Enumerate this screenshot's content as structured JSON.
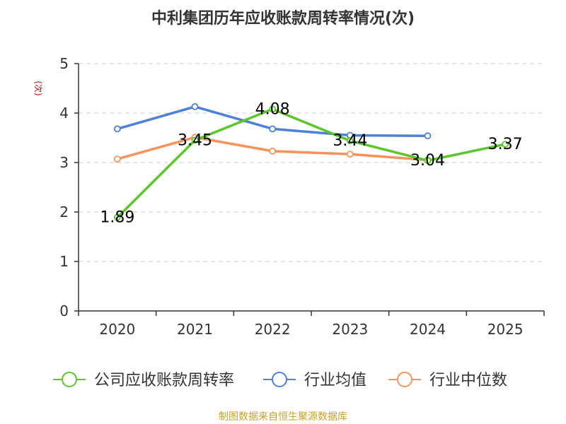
{
  "chart_data": {
    "type": "line",
    "title": "中利集团历年应收账款周转率情况(次)",
    "ylabel": "(次)",
    "ylim": [
      0,
      5
    ],
    "yticks": [
      0,
      1,
      2,
      3,
      4,
      5
    ],
    "categories": [
      "2020",
      "2021",
      "2022",
      "2023",
      "2024",
      "2025"
    ],
    "grid": true,
    "legend_position": "bottom",
    "series": [
      {
        "name": "公司应收账款周转率",
        "color": "#5cc72a",
        "values": [
          1.89,
          3.45,
          4.08,
          3.44,
          3.04,
          3.37
        ],
        "labels": [
          "1.89",
          "3.45",
          "4.08",
          "3.44",
          "3.04",
          "3.37"
        ]
      },
      {
        "name": "行业均值",
        "color": "#4e7fd9",
        "values": [
          3.68,
          4.13,
          3.68,
          3.55,
          3.54,
          null
        ]
      },
      {
        "name": "行业中位数",
        "color": "#f7935a",
        "values": [
          3.07,
          3.51,
          3.23,
          3.17,
          3.05,
          null
        ]
      }
    ],
    "source": "制图数据来自恒生聚源数据库"
  },
  "colors": {
    "title": "#333333",
    "ylabel": "#cc0000",
    "source": "#c9a227",
    "axis": "#333333",
    "grid": "#cccccc"
  }
}
